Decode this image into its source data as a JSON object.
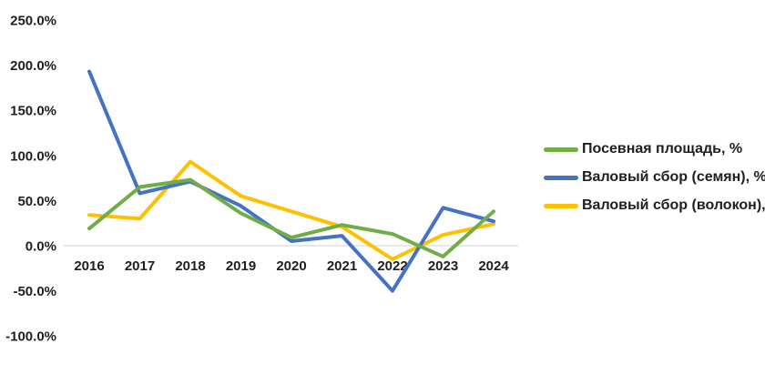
{
  "chart_data": {
    "type": "line",
    "title": "",
    "xlabel": "",
    "ylabel": "",
    "categories": [
      "2016",
      "2017",
      "2018",
      "2019",
      "2020",
      "2021",
      "2022",
      "2023",
      "2024"
    ],
    "series": [
      {
        "name": "Посевная площадь, %",
        "color": "#70AD47",
        "values": [
          19,
          65,
          73,
          36,
          9,
          23,
          13,
          -12,
          38
        ]
      },
      {
        "name": "Валовый сбор (семян), %",
        "color": "#4472C4",
        "values": [
          193,
          58,
          71,
          44,
          5,
          11,
          -50,
          42,
          27
        ]
      },
      {
        "name": "Валовый сбор (волокон), %",
        "color": "#FFC000",
        "values": [
          34,
          30,
          93,
          55,
          38,
          21,
          -15,
          12,
          24
        ]
      }
    ],
    "yticks": [
      {
        "label": "250.0%",
        "value": 250
      },
      {
        "label": "200.0%",
        "value": 200
      },
      {
        "label": "150.0%",
        "value": 150
      },
      {
        "label": "100.0%",
        "value": 100
      },
      {
        "label": "50.0%",
        "value": 50
      },
      {
        "label": "0.0%",
        "value": 0
      },
      {
        "label": "-50.0%",
        "value": -50
      },
      {
        "label": "-100.0%",
        "value": -100
      }
    ],
    "ylim": [
      -100,
      250
    ],
    "grid": "zero-axis-line-only",
    "legend_position": "right",
    "axis_line_color": "#d9d9d9",
    "text_color": "#1f1f1f",
    "background_color": "#ffffff"
  }
}
